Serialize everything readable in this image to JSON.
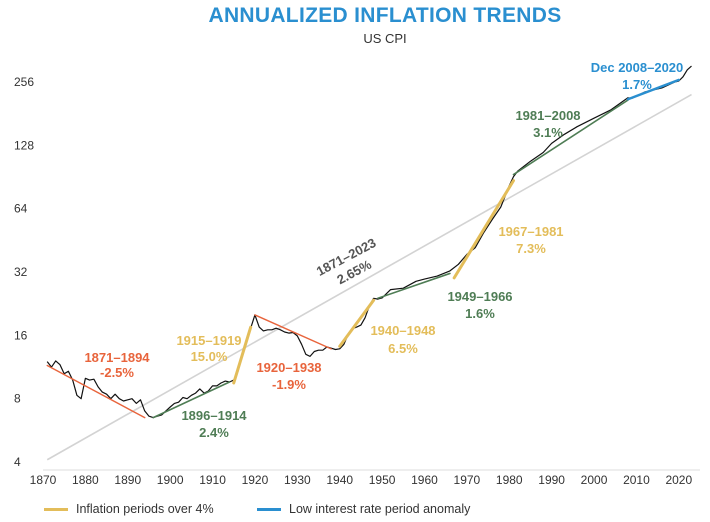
{
  "chart_data": {
    "type": "line",
    "title": "ANNUALIZED INFLATION TRENDS",
    "subtitle": "US CPI",
    "y_scale": "log2",
    "ylim": [
      4,
      280
    ],
    "xlim": [
      1870,
      2025
    ],
    "x_ticks": [
      1870,
      1880,
      1890,
      1900,
      1910,
      1920,
      1930,
      1940,
      1950,
      1960,
      1970,
      1980,
      1990,
      2000,
      2010,
      2020
    ],
    "y_ticks": [
      4,
      8,
      16,
      32,
      64,
      128,
      256
    ],
    "grid": false,
    "legend_position": "bottom",
    "colors": {
      "cpi": "#111111",
      "trend_long": "#d3d3d3",
      "inflation": "#e3bd5a",
      "decline": "#e8643c",
      "stable": "#4f7d55",
      "low_rate": "#2a8fd0",
      "tick_text": "#333333"
    },
    "cpi_series": {
      "name": "US CPI",
      "x": [
        1871,
        1872,
        1873,
        1874,
        1875,
        1876,
        1877,
        1878,
        1879,
        1880,
        1881,
        1882,
        1883,
        1884,
        1885,
        1886,
        1887,
        1888,
        1889,
        1890,
        1891,
        1892,
        1893,
        1894,
        1895,
        1896,
        1897,
        1898,
        1899,
        1900,
        1901,
        1902,
        1903,
        1904,
        1905,
        1906,
        1907,
        1908,
        1909,
        1910,
        1911,
        1912,
        1913,
        1914,
        1915,
        1916,
        1917,
        1918,
        1919,
        1920,
        1921,
        1922,
        1923,
        1924,
        1925,
        1926,
        1927,
        1928,
        1929,
        1930,
        1931,
        1932,
        1933,
        1934,
        1935,
        1936,
        1937,
        1938,
        1939,
        1940,
        1941,
        1942,
        1943,
        1944,
        1945,
        1946,
        1947,
        1948,
        1949,
        1950,
        1952,
        1955,
        1958,
        1960,
        1963,
        1966,
        1968,
        1970,
        1972,
        1974,
        1976,
        1978,
        1980,
        1981,
        1982,
        1985,
        1988,
        1990,
        1993,
        1996,
        2000,
        2004,
        2008,
        2009,
        2012,
        2016,
        2019,
        2020,
        2021,
        2022,
        2023
      ],
      "y": [
        12.0,
        11.3,
        12.1,
        11.6,
        10.5,
        10.8,
        9.8,
        8.3,
        8.0,
        10.0,
        9.8,
        9.9,
        9.1,
        8.6,
        8.4,
        8.0,
        8.4,
        8.0,
        7.8,
        7.9,
        8.0,
        7.6,
        7.9,
        7.0,
        6.6,
        6.5,
        6.6,
        6.7,
        7.0,
        7.3,
        7.6,
        7.7,
        8.1,
        8.0,
        8.3,
        8.5,
        8.9,
        8.5,
        8.7,
        9.2,
        9.2,
        9.5,
        9.7,
        9.6,
        9.8,
        10.8,
        12.8,
        15.0,
        17.3,
        20.0,
        17.5,
        16.8,
        17.0,
        17.0,
        17.3,
        17.0,
        16.6,
        16.4,
        16.5,
        15.9,
        14.5,
        13.0,
        12.7,
        13.4,
        13.6,
        13.6,
        14.1,
        13.9,
        13.7,
        13.8,
        14.5,
        16.2,
        17.2,
        17.5,
        17.9,
        19.4,
        22.1,
        24.0,
        23.8,
        24.1,
        26.4,
        26.8,
        28.9,
        29.6,
        30.6,
        32.4,
        34.8,
        38.8,
        41.8,
        49.3,
        56.9,
        65.2,
        82.4,
        90.9,
        96.5,
        107.6,
        118.3,
        130.7,
        144.5,
        156.9,
        172.2,
        188.9,
        215.3,
        214.5,
        229.6,
        240.0,
        255.7,
        258.8,
        271.0,
        292.7,
        304.7
      ]
    },
    "segments": [
      {
        "label": "1871–1894",
        "rate": "-2.5%",
        "kind": "decline",
        "x": [
          1871,
          1894
        ],
        "y": [
          11.5,
          6.5
        ]
      },
      {
        "label": "1896–1914",
        "rate": "2.4%",
        "kind": "stable",
        "x": [
          1896,
          1914
        ],
        "y": [
          6.5,
          9.6
        ]
      },
      {
        "label": "1915–1919",
        "rate": "15.0%",
        "kind": "inflation",
        "x": [
          1915,
          1919
        ],
        "y": [
          9.5,
          17.5
        ]
      },
      {
        "label": "1920–1938",
        "rate": "-1.9%",
        "kind": "decline",
        "x": [
          1920,
          1938
        ],
        "y": [
          20.0,
          13.8
        ]
      },
      {
        "label": "1940–1948",
        "rate": "6.5%",
        "kind": "inflation",
        "x": [
          1940,
          1948
        ],
        "y": [
          14.2,
          23.5
        ]
      },
      {
        "label": "1949–1966",
        "rate": "1.6%",
        "kind": "stable",
        "x": [
          1949,
          1966
        ],
        "y": [
          24.0,
          31.5
        ]
      },
      {
        "label": "1967–1981",
        "rate": "7.3%",
        "kind": "inflation",
        "x": [
          1967,
          1981
        ],
        "y": [
          30.0,
          87.0
        ]
      },
      {
        "label": "1981–2008",
        "rate": "3.1%",
        "kind": "stable",
        "x": [
          1981,
          2008
        ],
        "y": [
          93.0,
          210.0
        ]
      },
      {
        "label": "Dec 2008–2020",
        "rate": "1.7%",
        "kind": "low_rate",
        "x": [
          2008,
          2020
        ],
        "y": [
          212.0,
          262.0
        ]
      },
      {
        "label": "1871–2023",
        "rate": "2.65%",
        "kind": "trend_long",
        "x": [
          1871,
          2023
        ],
        "y": [
          4.1,
          223.0
        ]
      }
    ],
    "legend": [
      {
        "label": "Inflation periods over 4%",
        "color": "#e3bd5a"
      },
      {
        "label": "Low interest rate period anomaly",
        "color": "#2a8fd0"
      }
    ]
  }
}
